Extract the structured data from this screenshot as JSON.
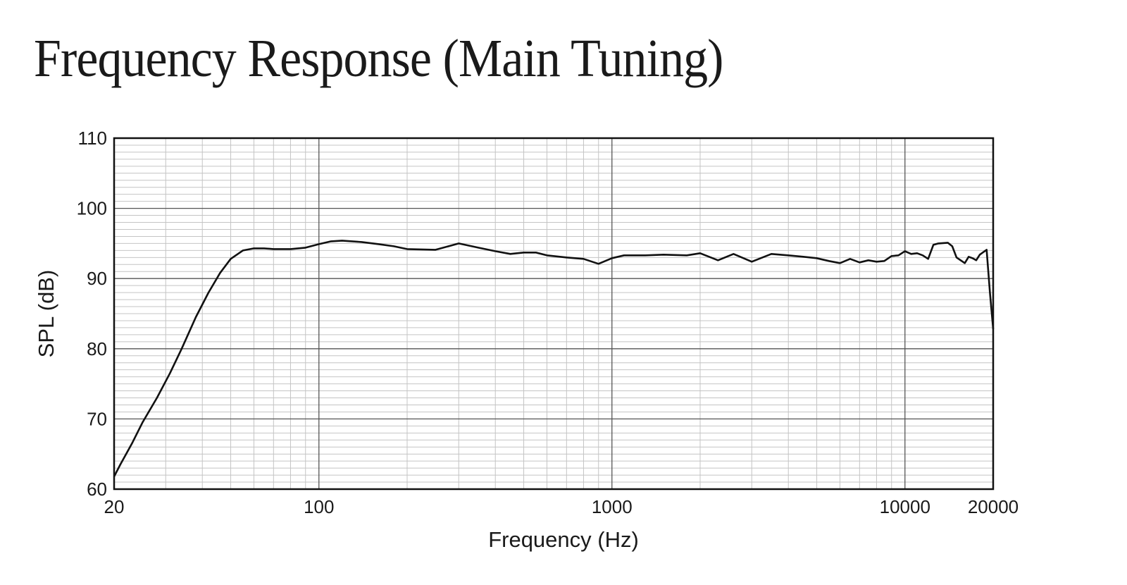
{
  "chart_data": {
    "type": "line",
    "title": "Frequency Response (Main Tuning)",
    "xlabel": "Frequency (Hz)",
    "ylabel": "SPL (dB)",
    "x_scale": "log",
    "xlim": [
      20,
      20000
    ],
    "ylim": [
      60,
      110
    ],
    "grid": true,
    "x_ticks": [
      20,
      100,
      1000,
      10000,
      20000
    ],
    "x_tick_labels": [
      "20",
      "100",
      "1000",
      "10000",
      "20000"
    ],
    "y_ticks": [
      60,
      70,
      80,
      90,
      100,
      110
    ],
    "y_tick_labels": [
      "60",
      "70",
      "80",
      "90",
      "100",
      "110"
    ],
    "x": [
      20,
      21,
      23,
      25,
      28,
      31,
      34,
      38,
      42,
      46,
      50,
      55,
      60,
      65,
      70,
      80,
      90,
      100,
      110,
      120,
      140,
      160,
      180,
      200,
      250,
      300,
      350,
      400,
      450,
      500,
      550,
      600,
      700,
      800,
      900,
      1000,
      1100,
      1300,
      1500,
      1800,
      2000,
      2300,
      2600,
      3000,
      3500,
      4000,
      4500,
      5000,
      5500,
      6000,
      6500,
      7000,
      7500,
      8000,
      8500,
      9000,
      9500,
      10000,
      10500,
      11000,
      11500,
      12000,
      12500,
      13000,
      14000,
      14500,
      15000,
      16000,
      16500,
      17000,
      17500,
      18000,
      19000,
      19500,
      20000
    ],
    "series": [
      {
        "color": "#111111",
        "values": [
          61.8,
          63.5,
          66.5,
          69.5,
          73.0,
          76.5,
          80.0,
          84.5,
          88.0,
          90.8,
          92.8,
          94.0,
          94.3,
          94.3,
          94.2,
          94.2,
          94.4,
          94.9,
          95.3,
          95.4,
          95.2,
          94.9,
          94.6,
          94.2,
          94.1,
          95.0,
          94.4,
          93.9,
          93.5,
          93.7,
          93.7,
          93.3,
          93.0,
          92.8,
          92.1,
          92.9,
          93.3,
          93.3,
          93.4,
          93.3,
          93.6,
          92.6,
          93.5,
          92.4,
          93.5,
          93.3,
          93.1,
          92.9,
          92.5,
          92.2,
          92.8,
          92.3,
          92.6,
          92.4,
          92.5,
          93.2,
          93.3,
          93.9,
          93.5,
          93.6,
          93.3,
          92.8,
          94.8,
          95.0,
          95.1,
          94.6,
          93.0,
          92.2,
          93.1,
          92.9,
          92.6,
          93.4,
          94.1,
          88.0,
          82.8
        ]
      }
    ]
  }
}
